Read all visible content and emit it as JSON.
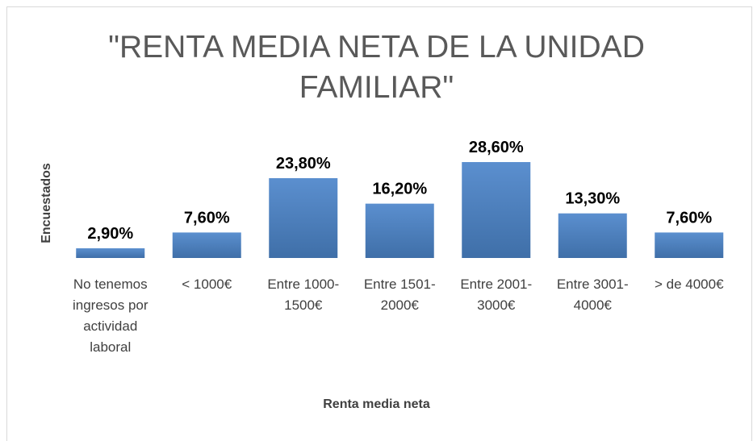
{
  "chart_data": {
    "type": "bar",
    "title": "\"RENTA MEDIA NETA DE LA UNIDAD FAMILIAR\"",
    "x_label": "Renta media neta",
    "y_label": "Encuestados",
    "categories": [
      "No tenemos ingresos por actividad laboral",
      "< 1000€",
      "Entre 1000-1500€",
      "Entre 1501-2000€",
      "Entre 2001-3000€",
      "Entre 3001-4000€",
      "> de 4000€"
    ],
    "values": [
      2.9,
      7.6,
      23.8,
      16.2,
      28.6,
      13.3,
      7.6
    ],
    "value_labels": [
      "2,90%",
      "7,60%",
      "23,80%",
      "16,20%",
      "28,60%",
      "13,30%",
      "7,60%"
    ],
    "color": "#4a7ebb"
  }
}
